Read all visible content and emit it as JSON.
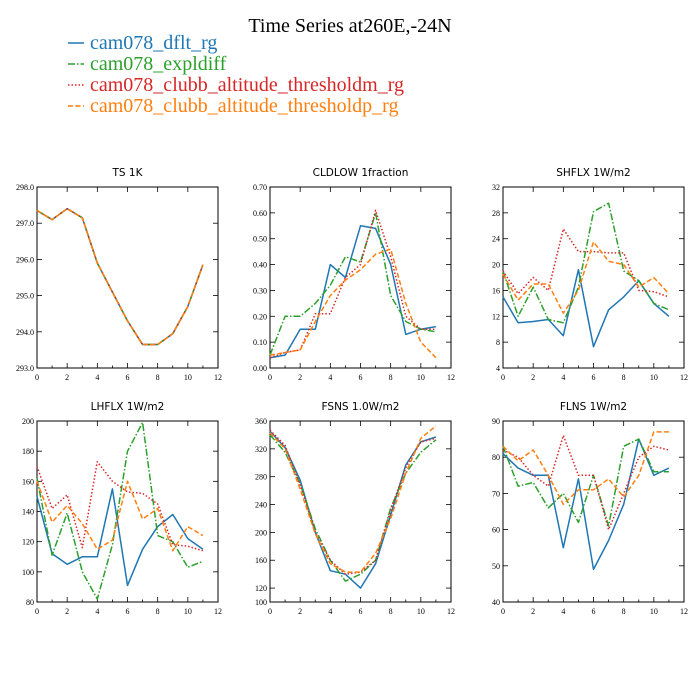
{
  "colors": {
    "dflt": "#1f77b4",
    "expldiff": "#2ca02c",
    "thresholdm": "#d62728",
    "thresholdp": "#ff7f0e"
  },
  "chart_data": {
    "type": "line",
    "title": "Time Series at260E,-24N",
    "legend": [
      {
        "name": "cam078_dflt_rg",
        "color": "#1f77b4",
        "dash": "solid"
      },
      {
        "name": "cam078_expldiff",
        "color": "#2ca02c",
        "dash": "dashdot"
      },
      {
        "name": "cam078_clubb_altitude_thresholdm_rg",
        "color": "#d62728",
        "dash": "dot"
      },
      {
        "name": "cam078_clubb_altitude_thresholdp_rg",
        "color": "#ff7f0e",
        "dash": "dash"
      }
    ],
    "x": [
      0,
      1,
      2,
      3,
      4,
      5,
      6,
      7,
      8,
      9,
      10,
      11
    ],
    "panels": [
      {
        "title": "TS   1K",
        "xlim": [
          0,
          12
        ],
        "xticks": [
          "0",
          "2",
          "4",
          "6",
          "8",
          "10",
          "12"
        ],
        "ylim": [
          293,
          298
        ],
        "yticks": [
          "293.0",
          "294.0",
          "295.0",
          "296.0",
          "297.0",
          "298.0"
        ],
        "series": [
          {
            "name": "cam078_dflt_rg",
            "values": [
              297.35,
              297.1,
              297.4,
              297.15,
              295.9,
              295.1,
              294.3,
              293.65,
              293.65,
              293.95,
              294.7,
              295.85
            ]
          },
          {
            "name": "cam078_expldiff",
            "values": [
              297.35,
              297.1,
              297.4,
              297.15,
              295.9,
              295.1,
              294.3,
              293.65,
              293.65,
              293.95,
              294.7,
              295.85
            ]
          },
          {
            "name": "cam078_clubb_altitude_thresholdm_rg",
            "values": [
              297.35,
              297.1,
              297.4,
              297.15,
              295.9,
              295.1,
              294.3,
              293.65,
              293.65,
              293.95,
              294.7,
              295.85
            ]
          },
          {
            "name": "cam078_clubb_altitude_thresholdp_rg",
            "values": [
              297.35,
              297.1,
              297.4,
              297.15,
              295.9,
              295.1,
              294.3,
              293.65,
              293.65,
              293.95,
              294.7,
              295.85
            ]
          }
        ]
      },
      {
        "title": "CLDLOW   1fraction",
        "xlim": [
          0,
          12
        ],
        "xticks": [
          "0",
          "2",
          "4",
          "6",
          "8",
          "10",
          "12"
        ],
        "ylim": [
          0,
          0.7
        ],
        "yticks": [
          "0.00",
          "0.10",
          "0.20",
          "0.30",
          "0.40",
          "0.50",
          "0.60",
          "0.70"
        ],
        "series": [
          {
            "name": "cam078_dflt_rg",
            "values": [
              0.04,
              0.05,
              0.15,
              0.15,
              0.4,
              0.35,
              0.55,
              0.54,
              0.4,
              0.13,
              0.15,
              0.16
            ]
          },
          {
            "name": "cam078_expldiff",
            "values": [
              0.05,
              0.2,
              0.2,
              0.25,
              0.32,
              0.43,
              0.41,
              0.6,
              0.28,
              0.18,
              0.15,
              0.14
            ]
          },
          {
            "name": "cam078_clubb_altitude_thresholdm_rg",
            "values": [
              0.04,
              0.06,
              0.07,
              0.21,
              0.21,
              0.35,
              0.4,
              0.61,
              0.43,
              0.2,
              0.15,
              0.15
            ]
          },
          {
            "name": "cam078_clubb_altitude_thresholdp_rg",
            "values": [
              0.05,
              0.06,
              0.07,
              0.18,
              0.28,
              0.34,
              0.38,
              0.44,
              0.46,
              0.25,
              0.1,
              0.04
            ]
          }
        ]
      },
      {
        "title": "SHFLX   1W/m2",
        "xlim": [
          0,
          12
        ],
        "xticks": [
          "0",
          "2",
          "4",
          "6",
          "8",
          "10",
          "12"
        ],
        "ylim": [
          4,
          32
        ],
        "yticks": [
          "4",
          "8",
          "12",
          "16",
          "20",
          "24",
          "28",
          "32"
        ],
        "series": [
          {
            "name": "cam078_dflt_rg",
            "values": [
              15,
              11,
              11.2,
              11.5,
              9,
              19.2,
              7.3,
              13,
              15,
              17.5,
              14,
              12
            ]
          },
          {
            "name": "cam078_expldiff",
            "values": [
              19,
              12,
              16.5,
              11.5,
              11,
              16.5,
              28.2,
              29.5,
              19,
              17.5,
              14,
              13
            ]
          },
          {
            "name": "cam078_clubb_altitude_thresholdm_rg",
            "values": [
              19,
              15.5,
              18,
              16,
              25.5,
              22,
              22,
              21.8,
              21.8,
              16,
              15.8,
              15
            ]
          },
          {
            "name": "cam078_clubb_altitude_thresholdp_rg",
            "values": [
              18.5,
              14.5,
              17,
              17,
              12.5,
              16,
              23.5,
              20.5,
              20,
              16.5,
              18,
              15.5
            ]
          }
        ]
      },
      {
        "title": "LHFLX   1W/m2",
        "xlim": [
          0,
          12
        ],
        "xticks": [
          "0",
          "2",
          "4",
          "6",
          "8",
          "10",
          "12"
        ],
        "ylim": [
          80,
          200
        ],
        "yticks": [
          "80",
          "100",
          "120",
          "140",
          "160",
          "180",
          "200"
        ],
        "series": [
          {
            "name": "cam078_dflt_rg",
            "values": [
              150,
              112,
              105,
              110,
              110,
              155,
              91,
              115,
              130,
              138,
              122,
              115
            ]
          },
          {
            "name": "cam078_expldiff",
            "values": [
              162,
              111,
              139,
              100,
              82,
              118,
              180,
              199,
              124,
              120,
              103,
              107
            ]
          },
          {
            "name": "cam078_clubb_altitude_thresholdm_rg",
            "values": [
              170,
              142,
              151,
              116,
              173,
              160,
              153,
              152,
              145,
              118,
              117,
              114
            ]
          },
          {
            "name": "cam078_clubb_altitude_thresholdp_rg",
            "values": [
              160,
              133,
              144,
              132,
              115,
              121,
              160,
              135,
              142,
              114,
              130,
              124
            ]
          }
        ]
      },
      {
        "title": "FSNS   1.0W/m2",
        "xlim": [
          0,
          12
        ],
        "xticks": [
          "0",
          "2",
          "4",
          "6",
          "8",
          "10",
          "12"
        ],
        "ylim": [
          100,
          360
        ],
        "yticks": [
          "100",
          "120",
          "160",
          "200",
          "240",
          "280",
          "320",
          "360"
        ],
        "yticks_values": [
          100,
          120,
          160,
          200,
          240,
          280,
          320,
          360
        ],
        "series": [
          {
            "name": "cam078_dflt_rg",
            "values": [
              345,
              322,
              275,
              200,
              145,
              140,
              120,
              155,
              225,
              297,
              330,
              337
            ]
          },
          {
            "name": "cam078_expldiff",
            "values": [
              340,
              315,
              270,
              205,
              160,
              130,
              140,
              160,
              235,
              285,
              315,
              333
            ]
          },
          {
            "name": "cam078_clubb_altitude_thresholdm_rg",
            "values": [
              347,
              325,
              268,
              200,
              160,
              140,
              143,
              160,
              232,
              293,
              330,
              335
            ]
          },
          {
            "name": "cam078_clubb_altitude_thresholdp_rg",
            "values": [
              343,
              320,
              262,
              198,
              155,
              143,
              143,
              170,
              220,
              285,
              335,
              353
            ]
          }
        ]
      },
      {
        "title": "FLNS   1W/m2",
        "xlim": [
          0,
          12
        ],
        "xticks": [
          "0",
          "2",
          "4",
          "6",
          "8",
          "10",
          "12"
        ],
        "ylim": [
          40,
          90
        ],
        "yticks": [
          "40",
          "50",
          "60",
          "70",
          "80",
          "90"
        ],
        "series": [
          {
            "name": "cam078_dflt_rg",
            "values": [
              81,
              77,
              75,
              75,
              55,
              74,
              49,
              57,
              67,
              85,
              75,
              77
            ]
          },
          {
            "name": "cam078_expldiff",
            "values": [
              83,
              72,
              73,
              66,
              70,
              62,
              75,
              61,
              83,
              85,
              76,
              76
            ]
          },
          {
            "name": "cam078_clubb_altitude_thresholdm_rg",
            "values": [
              82,
              80,
              75,
              72,
              86,
              75,
              75,
              60,
              70,
              80,
              83,
              82
            ]
          },
          {
            "name": "cam078_clubb_altitude_thresholdp_rg",
            "values": [
              83,
              79,
              82,
              75,
              67,
              71,
              71,
              74,
              69,
              75,
              87,
              87
            ]
          }
        ]
      }
    ]
  }
}
